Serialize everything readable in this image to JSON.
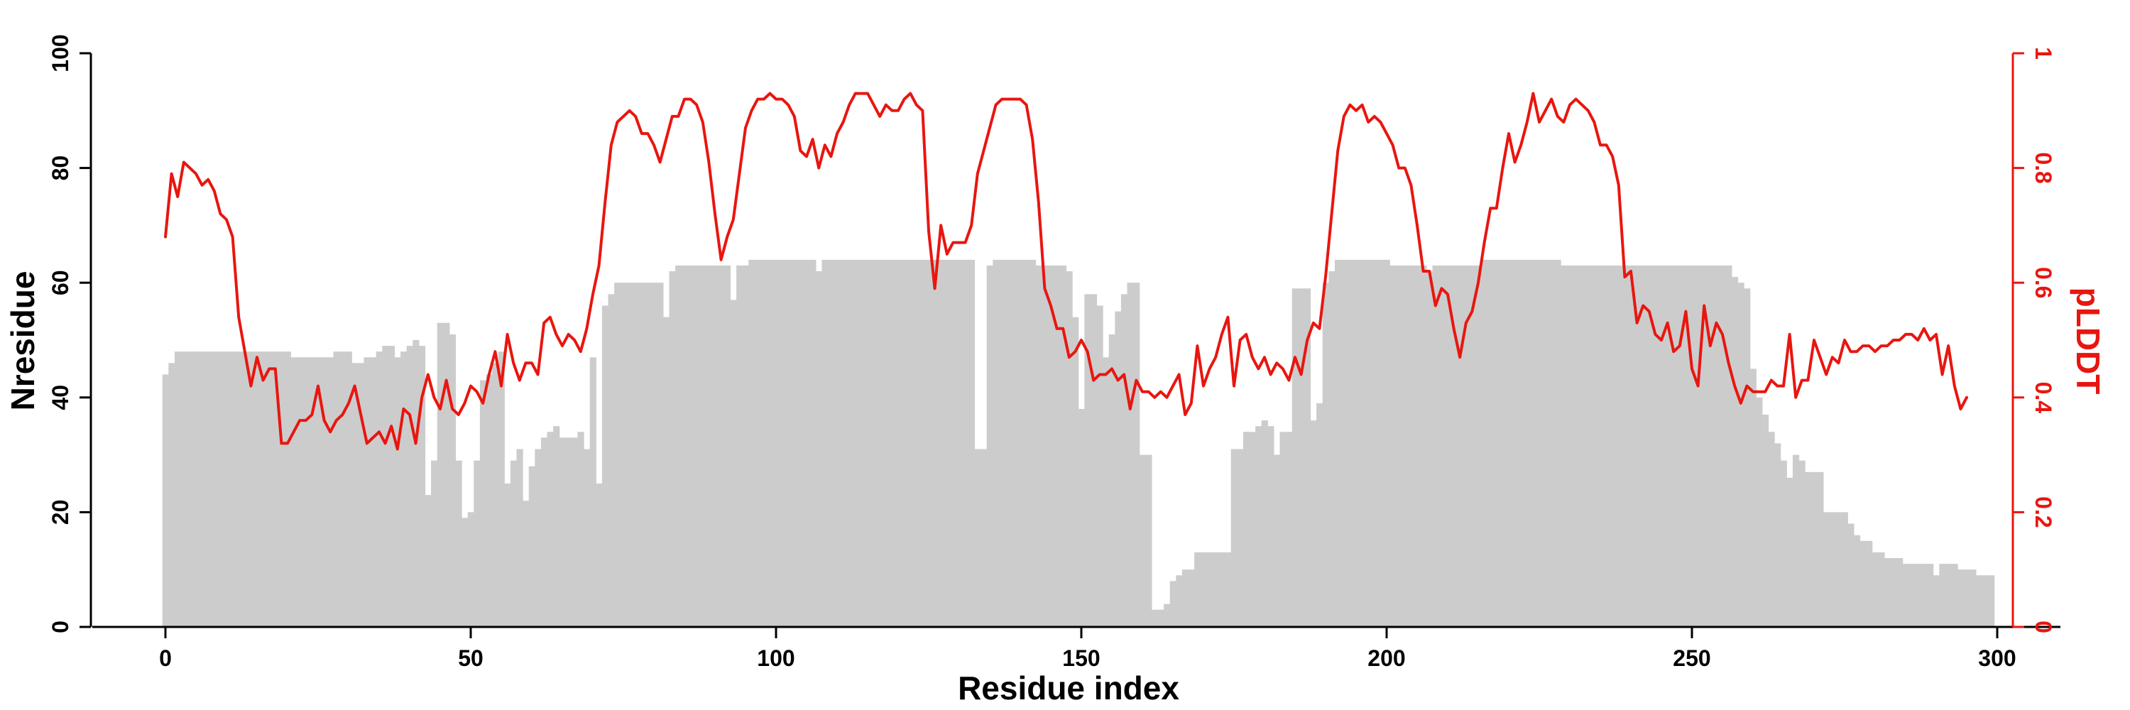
{
  "chart_data": {
    "type": "bar+line",
    "x": {
      "label": "Residue index",
      "range": [
        0,
        300
      ],
      "ticks": [
        0,
        50,
        100,
        150,
        200,
        250,
        300
      ],
      "tick_labels": [
        "0",
        "50",
        "100",
        "150",
        "200",
        "250",
        "300"
      ]
    },
    "y_left": {
      "label": "Nresidue",
      "range": [
        0,
        100
      ],
      "ticks": [
        0,
        20,
        40,
        60,
        80,
        100
      ],
      "tick_labels": [
        "0",
        "20",
        "40",
        "60",
        "80",
        "100"
      ]
    },
    "y_right": {
      "label": "pLDDT",
      "range": [
        0,
        1
      ],
      "ticks": [
        0,
        0.2,
        0.4,
        0.6,
        0.8,
        1
      ],
      "tick_labels": [
        "0",
        "0.2",
        "0.4",
        "0.6",
        "0.8",
        "1"
      ],
      "color": "#e8160f"
    },
    "bar_color": "#cccccc",
    "line_color": "#e8160f",
    "grid": false,
    "bar_runs": [
      [
        0,
        0,
        44
      ],
      [
        1,
        1,
        46
      ],
      [
        2,
        20,
        48
      ],
      [
        21,
        21,
        47
      ],
      [
        22,
        26,
        47
      ],
      [
        27,
        27,
        47
      ],
      [
        28,
        30,
        48
      ],
      [
        31,
        32,
        46
      ],
      [
        33,
        34,
        47
      ],
      [
        35,
        35,
        48
      ],
      [
        36,
        37,
        49
      ],
      [
        38,
        38,
        47
      ],
      [
        39,
        39,
        48
      ],
      [
        40,
        40,
        49
      ],
      [
        41,
        41,
        50
      ],
      [
        42,
        42,
        49
      ],
      [
        43,
        43,
        23
      ],
      [
        44,
        44,
        29
      ],
      [
        45,
        46,
        53
      ],
      [
        47,
        47,
        51
      ],
      [
        48,
        48,
        29
      ],
      [
        49,
        49,
        19
      ],
      [
        50,
        50,
        20
      ],
      [
        51,
        51,
        29
      ],
      [
        52,
        52,
        43
      ],
      [
        53,
        53,
        44
      ],
      [
        54,
        54,
        46
      ],
      [
        55,
        55,
        48
      ],
      [
        56,
        56,
        25
      ],
      [
        57,
        57,
        29
      ],
      [
        58,
        58,
        31
      ],
      [
        59,
        59,
        22
      ],
      [
        60,
        60,
        28
      ],
      [
        61,
        61,
        31
      ],
      [
        62,
        62,
        33
      ],
      [
        63,
        63,
        34
      ],
      [
        64,
        64,
        35
      ],
      [
        65,
        67,
        33
      ],
      [
        68,
        68,
        34
      ],
      [
        69,
        69,
        31
      ],
      [
        70,
        70,
        47
      ],
      [
        71,
        71,
        25
      ],
      [
        72,
        72,
        56
      ],
      [
        73,
        73,
        58
      ],
      [
        74,
        81,
        60
      ],
      [
        82,
        82,
        54
      ],
      [
        83,
        83,
        62
      ],
      [
        84,
        84,
        63
      ],
      [
        85,
        92,
        63
      ],
      [
        93,
        93,
        57
      ],
      [
        94,
        94,
        63
      ],
      [
        95,
        95,
        63
      ],
      [
        96,
        106,
        64
      ],
      [
        107,
        107,
        62
      ],
      [
        108,
        132,
        64
      ],
      [
        133,
        134,
        31
      ],
      [
        135,
        135,
        63
      ],
      [
        136,
        142,
        64
      ],
      [
        143,
        147,
        63
      ],
      [
        148,
        148,
        62
      ],
      [
        149,
        149,
        54
      ],
      [
        150,
        150,
        38
      ],
      [
        151,
        152,
        58
      ],
      [
        153,
        153,
        56
      ],
      [
        154,
        154,
        47
      ],
      [
        155,
        155,
        51
      ],
      [
        156,
        156,
        55
      ],
      [
        157,
        157,
        58
      ],
      [
        158,
        159,
        60
      ],
      [
        160,
        161,
        30
      ],
      [
        162,
        162,
        3
      ],
      [
        163,
        163,
        3
      ],
      [
        164,
        164,
        4
      ],
      [
        165,
        165,
        8
      ],
      [
        166,
        166,
        9
      ],
      [
        167,
        168,
        10
      ],
      [
        169,
        174,
        13
      ],
      [
        175,
        176,
        31
      ],
      [
        177,
        178,
        34
      ],
      [
        179,
        179,
        35
      ],
      [
        180,
        180,
        36
      ],
      [
        181,
        181,
        35
      ],
      [
        182,
        182,
        30
      ],
      [
        183,
        184,
        34
      ],
      [
        185,
        187,
        59
      ],
      [
        188,
        188,
        36
      ],
      [
        189,
        189,
        39
      ],
      [
        190,
        190,
        60
      ],
      [
        191,
        191,
        62
      ],
      [
        192,
        200,
        64
      ],
      [
        201,
        206,
        63
      ],
      [
        207,
        207,
        62
      ],
      [
        208,
        215,
        63
      ],
      [
        216,
        228,
        64
      ],
      [
        229,
        256,
        63
      ],
      [
        257,
        257,
        61
      ],
      [
        258,
        258,
        60
      ],
      [
        259,
        259,
        59
      ],
      [
        260,
        260,
        45
      ],
      [
        261,
        261,
        40
      ],
      [
        262,
        262,
        37
      ],
      [
        263,
        263,
        34
      ],
      [
        264,
        264,
        32
      ],
      [
        265,
        265,
        29
      ],
      [
        266,
        266,
        26
      ],
      [
        267,
        267,
        30
      ],
      [
        268,
        268,
        29
      ],
      [
        269,
        271,
        27
      ],
      [
        272,
        275,
        20
      ],
      [
        276,
        276,
        18
      ],
      [
        277,
        277,
        16
      ],
      [
        278,
        279,
        15
      ],
      [
        280,
        281,
        13
      ],
      [
        282,
        282,
        12
      ],
      [
        283,
        284,
        12
      ],
      [
        285,
        289,
        11
      ],
      [
        290,
        290,
        9
      ],
      [
        291,
        293,
        11
      ],
      [
        294,
        296,
        10
      ],
      [
        297,
        299,
        9
      ]
    ],
    "plddt": [
      0.68,
      0.79,
      0.75,
      0.81,
      0.8,
      0.79,
      0.77,
      0.78,
      0.76,
      0.72,
      0.71,
      0.68,
      0.54,
      0.48,
      0.42,
      0.47,
      0.43,
      0.45,
      0.45,
      0.32,
      0.32,
      0.34,
      0.36,
      0.36,
      0.37,
      0.42,
      0.36,
      0.34,
      0.36,
      0.37,
      0.39,
      0.42,
      0.37,
      0.32,
      0.33,
      0.34,
      0.32,
      0.35,
      0.31,
      0.38,
      0.37,
      0.32,
      0.4,
      0.44,
      0.4,
      0.38,
      0.43,
      0.38,
      0.37,
      0.39,
      0.42,
      0.41,
      0.39,
      0.44,
      0.48,
      0.42,
      0.51,
      0.46,
      0.43,
      0.46,
      0.46,
      0.44,
      0.53,
      0.54,
      0.51,
      0.49,
      0.51,
      0.5,
      0.48,
      0.52,
      0.58,
      0.63,
      0.74,
      0.84,
      0.88,
      0.89,
      0.9,
      0.89,
      0.86,
      0.86,
      0.84,
      0.81,
      0.85,
      0.89,
      0.89,
      0.92,
      0.92,
      0.91,
      0.88,
      0.81,
      0.72,
      0.64,
      0.68,
      0.71,
      0.79,
      0.87,
      0.9,
      0.92,
      0.92,
      0.93,
      0.92,
      0.92,
      0.91,
      0.89,
      0.83,
      0.82,
      0.85,
      0.8,
      0.84,
      0.82,
      0.86,
      0.88,
      0.91,
      0.93,
      0.93,
      0.93,
      0.91,
      0.89,
      0.91,
      0.9,
      0.9,
      0.92,
      0.93,
      0.91,
      0.9,
      0.69,
      0.59,
      0.7,
      0.65,
      0.67,
      0.67,
      0.67,
      0.7,
      0.79,
      0.83,
      0.87,
      0.91,
      0.92,
      0.92,
      0.92,
      0.92,
      0.91,
      0.85,
      0.74,
      0.59,
      0.56,
      0.52,
      0.52,
      0.47,
      0.48,
      0.5,
      0.48,
      0.43,
      0.44,
      0.44,
      0.45,
      0.43,
      0.44,
      0.38,
      0.43,
      0.41,
      0.41,
      0.4,
      0.41,
      0.4,
      0.42,
      0.44,
      0.37,
      0.39,
      0.49,
      0.42,
      0.45,
      0.47,
      0.51,
      0.54,
      0.42,
      0.5,
      0.51,
      0.47,
      0.45,
      0.47,
      0.44,
      0.46,
      0.45,
      0.43,
      0.47,
      0.44,
      0.5,
      0.53,
      0.52,
      0.61,
      0.72,
      0.83,
      0.89,
      0.91,
      0.9,
      0.91,
      0.88,
      0.89,
      0.88,
      0.86,
      0.84,
      0.8,
      0.8,
      0.77,
      0.7,
      0.62,
      0.62,
      0.56,
      0.59,
      0.58,
      0.52,
      0.47,
      0.53,
      0.55,
      0.6,
      0.67,
      0.73,
      0.73,
      0.8,
      0.86,
      0.81,
      0.84,
      0.88,
      0.93,
      0.88,
      0.9,
      0.92,
      0.89,
      0.88,
      0.91,
      0.92,
      0.91,
      0.9,
      0.88,
      0.84,
      0.84,
      0.82,
      0.77,
      0.61,
      0.62,
      0.53,
      0.56,
      0.55,
      0.51,
      0.5,
      0.53,
      0.48,
      0.49,
      0.55,
      0.45,
      0.42,
      0.56,
      0.49,
      0.53,
      0.51,
      0.46,
      0.42,
      0.39,
      0.42,
      0.41,
      0.41,
      0.41,
      0.43,
      0.42,
      0.42,
      0.51,
      0.4,
      0.43,
      0.43,
      0.5,
      0.47,
      0.44,
      0.47,
      0.46,
      0.5,
      0.48,
      0.48,
      0.49,
      0.49,
      0.48,
      0.49,
      0.49,
      0.5,
      0.5,
      0.51,
      0.51,
      0.5,
      0.52,
      0.5,
      0.51,
      0.44,
      0.49,
      0.42,
      0.38,
      0.4
    ]
  }
}
